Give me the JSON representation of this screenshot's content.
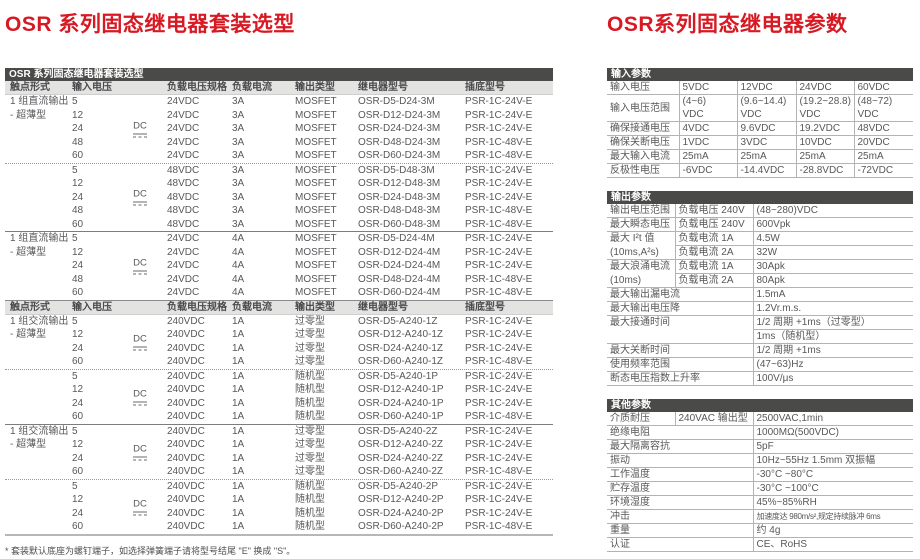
{
  "page": {
    "accent_red": "#d71923",
    "bar_bg": "#4a4a49"
  },
  "selection": {
    "title": "OSR 系列固态继电器套装选型",
    "bar_title": "OSR 系列固态继电器套装选型",
    "footnote": "* 套装默认底座为螺钉端子，如选择弹簧端子请将型号结尾 \"E\" 换成 \"S\"。",
    "columns": [
      "触点形式",
      "输入电压",
      "负载电压规格",
      "负载电流",
      "输出类型",
      "继电器型号",
      "插底型号"
    ],
    "dc_symbol_label": "DC",
    "parts": [
      {
        "blocks": [
          {
            "label": "1 组直流输出",
            "label2": "- 超薄型",
            "sep": "none",
            "dc": true,
            "rows": [
              [
                "5",
                "24VDC",
                "3A",
                "MOSFET",
                "OSR-D5-D24-3M",
                "PSR-1C-24V-E"
              ],
              [
                "12",
                "24VDC",
                "3A",
                "MOSFET",
                "OSR-D12-D24-3M",
                "PSR-1C-24V-E"
              ],
              [
                "24",
                "24VDC",
                "3A",
                "MOSFET",
                "OSR-D24-D24-3M",
                "PSR-1C-24V-E"
              ],
              [
                "48",
                "24VDC",
                "3A",
                "MOSFET",
                "OSR-D48-D24-3M",
                "PSR-1C-48V-E"
              ],
              [
                "60",
                "24VDC",
                "3A",
                "MOSFET",
                "OSR-D60-D24-3M",
                "PSR-1C-48V-E"
              ]
            ]
          },
          {
            "label": "",
            "label2": "",
            "sep": "dotted",
            "dc": true,
            "rows": [
              [
                "5",
                "48VDC",
                "3A",
                "MOSFET",
                "OSR-D5-D48-3M",
                "PSR-1C-24V-E"
              ],
              [
                "12",
                "48VDC",
                "3A",
                "MOSFET",
                "OSR-D12-D48-3M",
                "PSR-1C-24V-E"
              ],
              [
                "24",
                "48VDC",
                "3A",
                "MOSFET",
                "OSR-D24-D48-3M",
                "PSR-1C-24V-E"
              ],
              [
                "48",
                "48VDC",
                "3A",
                "MOSFET",
                "OSR-D48-D48-3M",
                "PSR-1C-48V-E"
              ],
              [
                "60",
                "48VDC",
                "3A",
                "MOSFET",
                "OSR-D60-D48-3M",
                "PSR-1C-48V-E"
              ]
            ]
          },
          {
            "label": "1 组直流输出",
            "label2": "- 超薄型",
            "sep": "solid",
            "dc": true,
            "rows": [
              [
                "5",
                "24VDC",
                "4A",
                "MOSFET",
                "OSR-D5-D24-4M",
                "PSR-1C-24V-E"
              ],
              [
                "12",
                "24VDC",
                "4A",
                "MOSFET",
                "OSR-D12-D24-4M",
                "PSR-1C-24V-E"
              ],
              [
                "24",
                "24VDC",
                "4A",
                "MOSFET",
                "OSR-D24-D24-4M",
                "PSR-1C-24V-E"
              ],
              [
                "48",
                "24VDC",
                "4A",
                "MOSFET",
                "OSR-D48-D24-4M",
                "PSR-1C-48V-E"
              ],
              [
                "60",
                "24VDC",
                "4A",
                "MOSFET",
                "OSR-D60-D24-4M",
                "PSR-1C-48V-E"
              ]
            ]
          }
        ]
      },
      {
        "blocks": [
          {
            "label": "1 组交流输出",
            "label2": "- 超薄型",
            "sep": "none",
            "dc": true,
            "rows": [
              [
                "5",
                "240VDC",
                "1A",
                "过零型",
                "OSR-D5-A240-1Z",
                "PSR-1C-24V-E"
              ],
              [
                "12",
                "240VDC",
                "1A",
                "过零型",
                "OSR-D12-A240-1Z",
                "PSR-1C-24V-E"
              ],
              [
                "24",
                "240VDC",
                "1A",
                "过零型",
                "OSR-D24-A240-1Z",
                "PSR-1C-24V-E"
              ],
              [
                "60",
                "240VDC",
                "1A",
                "过零型",
                "OSR-D60-A240-1Z",
                "PSR-1C-48V-E"
              ]
            ]
          },
          {
            "label": "",
            "label2": "",
            "sep": "dotted",
            "dc": true,
            "rows": [
              [
                "5",
                "240VDC",
                "1A",
                "随机型",
                "OSR-D5-A240-1P",
                "PSR-1C-24V-E"
              ],
              [
                "12",
                "240VDC",
                "1A",
                "随机型",
                "OSR-D12-A240-1P",
                "PSR-1C-24V-E"
              ],
              [
                "24",
                "240VDC",
                "1A",
                "随机型",
                "OSR-D24-A240-1P",
                "PSR-1C-24V-E"
              ],
              [
                "60",
                "240VDC",
                "1A",
                "随机型",
                "OSR-D60-A240-1P",
                "PSR-1C-48V-E"
              ]
            ]
          },
          {
            "label": "1 组交流输出",
            "label2": "- 超薄型",
            "sep": "solid",
            "dc": true,
            "rows": [
              [
                "5",
                "240VDC",
                "1A",
                "过零型",
                "OSR-D5-A240-2Z",
                "PSR-1C-24V-E"
              ],
              [
                "12",
                "240VDC",
                "1A",
                "过零型",
                "OSR-D12-A240-2Z",
                "PSR-1C-24V-E"
              ],
              [
                "24",
                "240VDC",
                "1A",
                "过零型",
                "OSR-D24-A240-2Z",
                "PSR-1C-24V-E"
              ],
              [
                "60",
                "240VDC",
                "1A",
                "过零型",
                "OSR-D60-A240-2Z",
                "PSR-1C-48V-E"
              ]
            ]
          },
          {
            "label": "",
            "label2": "",
            "sep": "dotted",
            "dc": true,
            "rows": [
              [
                "5",
                "240VDC",
                "1A",
                "随机型",
                "OSR-D5-A240-2P",
                "PSR-1C-24V-E"
              ],
              [
                "12",
                "240VDC",
                "1A",
                "随机型",
                "OSR-D12-A240-2P",
                "PSR-1C-24V-E"
              ],
              [
                "24",
                "240VDC",
                "1A",
                "随机型",
                "OSR-D24-A240-2P",
                "PSR-1C-24V-E"
              ],
              [
                "60",
                "240VDC",
                "1A",
                "随机型",
                "OSR-D60-A240-2P",
                "PSR-1C-48V-E"
              ]
            ]
          }
        ]
      }
    ]
  },
  "params": {
    "title": "OSR系列固态继电器参数",
    "tables": [
      {
        "header": "输入参数",
        "widths": [
          72,
          58,
          59,
          58,
          59
        ],
        "rows": [
          [
            {
              "t": "输入电压",
              "cls": "lbl"
            },
            {
              "t": "5VDC"
            },
            {
              "t": "12VDC"
            },
            {
              "t": "24VDC"
            },
            {
              "t": "60VDC"
            }
          ],
          [
            {
              "t": "输入电压范围",
              "cls": "lbl"
            },
            {
              "t": "(4~6)\nVDC"
            },
            {
              "t": "(9.6~14.4)\nVDC"
            },
            {
              "t": "(19.2~28.8)\nVDC"
            },
            {
              "t": "(48~72)\nVDC"
            }
          ],
          [
            {
              "t": "确保接通电压",
              "cls": "lbl"
            },
            {
              "t": "4VDC"
            },
            {
              "t": "9.6VDC"
            },
            {
              "t": "19.2VDC"
            },
            {
              "t": "48VDC"
            }
          ],
          [
            {
              "t": "确保关断电压",
              "cls": "lbl"
            },
            {
              "t": "1VDC"
            },
            {
              "t": "3VDC"
            },
            {
              "t": "10VDC"
            },
            {
              "t": "20VDC"
            }
          ],
          [
            {
              "t": "最大输入电流",
              "cls": "lbl"
            },
            {
              "t": "25mA"
            },
            {
              "t": "25mA"
            },
            {
              "t": "25mA"
            },
            {
              "t": "25mA"
            }
          ],
          [
            {
              "t": "反极性电压",
              "cls": "lbl"
            },
            {
              "t": "-6VDC"
            },
            {
              "t": "-14.4VDC"
            },
            {
              "t": "-28.8VDC"
            },
            {
              "t": "-72VDC"
            }
          ]
        ]
      },
      {
        "header": "输出参数",
        "widths": [
          68,
          78,
          160
        ],
        "rows": [
          [
            {
              "t": "输出电压范围",
              "cls": "lbl"
            },
            {
              "t": "负载电压 240V"
            },
            {
              "t": "(48~280)VDC"
            }
          ],
          [
            {
              "t": "最大瞬态电压",
              "cls": "lbl"
            },
            {
              "t": "负载电压 240V"
            },
            {
              "t": "600Vpk"
            }
          ],
          [
            {
              "t": "最大 I²t 值",
              "cls": "lbl nb"
            },
            {
              "t": "负载电流 1A"
            },
            {
              "t": "4.5W"
            }
          ],
          [
            {
              "t": "(10ms,A²s)",
              "cls": "lbl"
            },
            {
              "t": "负载电流 2A"
            },
            {
              "t": "32W"
            }
          ],
          [
            {
              "t": "最大浪涌电流",
              "cls": "lbl nb"
            },
            {
              "t": "负载电流 1A"
            },
            {
              "t": "30Apk"
            }
          ],
          [
            {
              "t": "(10ms)",
              "cls": "lbl"
            },
            {
              "t": "负载电流 2A"
            },
            {
              "t": "80Apk"
            }
          ],
          [
            {
              "t": "最大输出漏电流",
              "cls": "lbl",
              "cs": 2
            },
            {
              "t": "1.5mA"
            }
          ],
          [
            {
              "t": "最大输出电压降",
              "cls": "lbl",
              "cs": 2
            },
            {
              "t": "1.2Vr.m.s."
            }
          ],
          [
            {
              "t": "最大接通时间",
              "cls": "lbl nb",
              "cs": 2
            },
            {
              "t": "1/2 周期 +1ms（过零型）"
            }
          ],
          [
            {
              "t": "",
              "cls": "lbl",
              "cs": 2
            },
            {
              "t": "1ms（随机型）"
            }
          ],
          [
            {
              "t": "最大关断时间",
              "cls": "lbl",
              "cs": 2
            },
            {
              "t": "1/2 周期 +1ms"
            }
          ],
          [
            {
              "t": "使用频率范围",
              "cls": "lbl",
              "cs": 2
            },
            {
              "t": "(47~63)Hz"
            }
          ],
          [
            {
              "t": "断态电压指数上升率",
              "cls": "lbl",
              "cs": 2
            },
            {
              "t": "100V/μs"
            }
          ]
        ]
      },
      {
        "header": "其他参数",
        "widths": [
          68,
          78,
          160
        ],
        "rows": [
          [
            {
              "t": "介质耐压",
              "cls": "lbl"
            },
            {
              "t": "240VAC 输出型"
            },
            {
              "t": "2500VAC,1min"
            }
          ],
          [
            {
              "t": "绝缘电阻",
              "cls": "lbl",
              "cs": 2
            },
            {
              "t": "1000MΩ(500VDC)"
            }
          ],
          [
            {
              "t": "最大隔离容抗",
              "cls": "lbl",
              "cs": 2
            },
            {
              "t": "5pF"
            }
          ],
          [
            {
              "t": "振动",
              "cls": "lbl",
              "cs": 2
            },
            {
              "t": "10Hz~55Hz 1.5mm 双振幅"
            }
          ],
          [
            {
              "t": "工作温度",
              "cls": "lbl",
              "cs": 2
            },
            {
              "t": "-30°C ~80°C"
            }
          ],
          [
            {
              "t": "贮存温度",
              "cls": "lbl",
              "cs": 2
            },
            {
              "t": "-30°C ~100°C"
            }
          ],
          [
            {
              "t": "环境湿度",
              "cls": "lbl",
              "cs": 2
            },
            {
              "t": "45%~85%RH"
            }
          ],
          [
            {
              "t": "冲击",
              "cls": "lbl",
              "cs": 2
            },
            {
              "t": "加速度达 980m/s²,规定持续脉冲 6ms",
              "cls2": "small"
            }
          ],
          [
            {
              "t": "重量",
              "cls": "lbl",
              "cs": 2
            },
            {
              "t": "约 4g"
            }
          ],
          [
            {
              "t": "认证",
              "cls": "lbl",
              "cs": 2
            },
            {
              "t": "CE、RoHS"
            }
          ]
        ]
      }
    ]
  }
}
